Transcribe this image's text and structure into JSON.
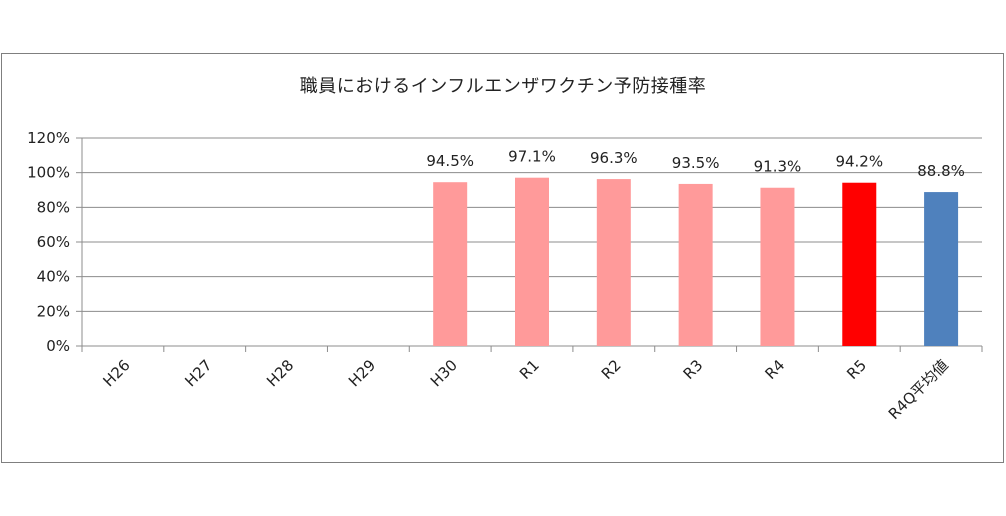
{
  "chart_data": {
    "type": "bar",
    "title": "職員におけるインフルエンザワクチン予防接種率",
    "categories": [
      "H26",
      "H27",
      "H28",
      "H29",
      "H30",
      "R1",
      "R2",
      "R3",
      "R4",
      "R5",
      "R4Q平均値"
    ],
    "values": [
      null,
      null,
      null,
      null,
      94.5,
      97.1,
      96.3,
      93.5,
      91.3,
      94.2,
      88.8
    ],
    "data_labels": [
      "",
      "",
      "",
      "",
      "94.5%",
      "97.1%",
      "96.3%",
      "93.5%",
      "91.3%",
      "94.2%",
      "88.8%"
    ],
    "bar_colors": [
      "#ff9a9a",
      "#ff9a9a",
      "#ff9a9a",
      "#ff9a9a",
      "#ff9a9a",
      "#ff9a9a",
      "#ff9a9a",
      "#ff9a9a",
      "#ff9a9a",
      "#ff0000",
      "#4f81bd"
    ],
    "ylim": [
      0,
      120
    ],
    "yticks": [
      0,
      20,
      40,
      60,
      80,
      100,
      120
    ],
    "ytick_labels": [
      "0%",
      "20%",
      "40%",
      "60%",
      "80%",
      "100%",
      "120%"
    ],
    "grid": true,
    "legend": "none",
    "xlabel": "",
    "ylabel": ""
  }
}
